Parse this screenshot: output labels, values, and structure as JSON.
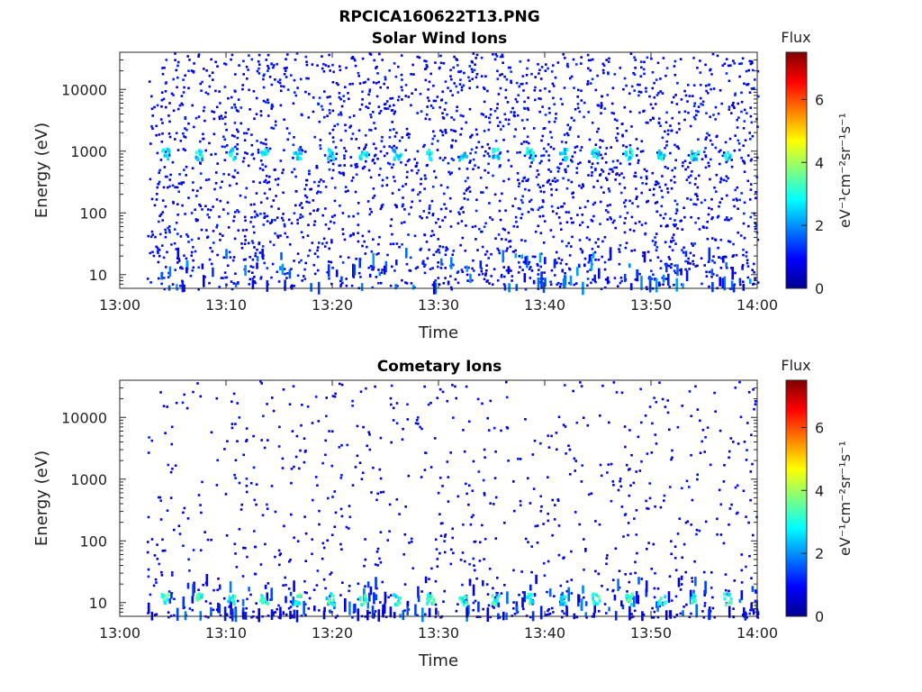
{
  "figure_title": "RPCICA160622T13.PNG",
  "chart_data": [
    {
      "type": "heatmap",
      "title": "Solar Wind Ions",
      "xlabel": "Time",
      "ylabel": "Energy (eV)",
      "x_ticks": [
        "13:00",
        "13:10",
        "13:20",
        "13:30",
        "13:40",
        "13:50",
        "14:00"
      ],
      "x_range_minutes": [
        0,
        60
      ],
      "y_scale": "log",
      "y_ticks": [
        10,
        100,
        1000,
        10000
      ],
      "y_tick_labels": [
        "10",
        "100",
        "1000",
        "10000"
      ],
      "ylim": [
        6,
        40000
      ],
      "colorbar": {
        "label": "Flux",
        "unit": "eV⁻¹cm⁻²sr⁻¹s⁻¹",
        "range": [
          0,
          7.5
        ],
        "ticks": [
          0,
          2,
          4,
          6
        ]
      },
      "data_start_minute": 2.5,
      "periodic_peaks": {
        "energy_eV": 950,
        "flux": 2.6,
        "minutes": [
          4.2,
          7.3,
          10.4,
          13.5,
          16.6,
          19.7,
          22.8,
          26.0,
          29.1,
          32.2,
          35.3,
          38.5,
          41.6,
          44.7,
          47.8,
          50.9,
          54.0,
          57.1
        ]
      },
      "noise": {
        "energy_range_eV": [
          6,
          40000
        ],
        "typical_flux": 1.0,
        "note_low_energy_bursts": true
      }
    },
    {
      "type": "heatmap",
      "title": "Cometary Ions",
      "xlabel": "Time",
      "ylabel": "Energy (eV)",
      "x_ticks": [
        "13:00",
        "13:10",
        "13:20",
        "13:30",
        "13:40",
        "13:50",
        "14:00"
      ],
      "x_range_minutes": [
        0,
        60
      ],
      "y_scale": "log",
      "y_ticks": [
        10,
        100,
        1000,
        10000
      ],
      "y_tick_labels": [
        "10",
        "100",
        "1000",
        "10000"
      ],
      "ylim": [
        6,
        40000
      ],
      "colorbar": {
        "label": "Flux",
        "unit": "eV⁻¹cm⁻²sr⁻¹s⁻¹",
        "range": [
          0,
          7.5
        ],
        "ticks": [
          0,
          2,
          4,
          6
        ]
      },
      "data_start_minute": 2.5,
      "periodic_peaks": {
        "energy_eV": 12,
        "flux": 3.0,
        "minutes": [
          4.2,
          7.3,
          10.4,
          13.5,
          16.6,
          19.7,
          22.8,
          26.0,
          29.1,
          32.2,
          35.3,
          38.5,
          41.6,
          44.7,
          47.8,
          50.9,
          54.0,
          57.1
        ]
      },
      "noise": {
        "energy_range_eV": [
          6,
          40000
        ],
        "typical_flux": 0.9,
        "note_low_energy_bursts": true
      }
    }
  ]
}
